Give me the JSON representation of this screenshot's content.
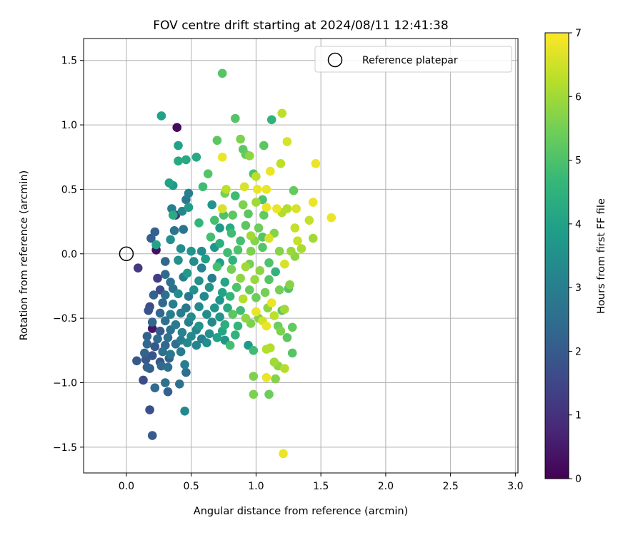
{
  "chart_data": {
    "type": "scatter",
    "title": "FOV centre drift starting at 2024/08/11 12:41:38",
    "xlabel": "Angular distance from reference (arcmin)",
    "ylabel": "Rotation from reference (arcmin)",
    "xlim": [
      -0.33,
      3.02
    ],
    "ylim": [
      -1.7,
      1.67
    ],
    "xticks": [
      0.0,
      0.5,
      1.0,
      1.5,
      2.0,
      2.5,
      3.0
    ],
    "xtick_labels": [
      "0.0",
      "0.5",
      "1.0",
      "1.5",
      "2.0",
      "2.5",
      "3.0"
    ],
    "yticks": [
      -1.5,
      -1.0,
      -0.5,
      0.0,
      0.5,
      1.0,
      1.5
    ],
    "ytick_labels": [
      "−1.5",
      "−1.0",
      "−0.5",
      "0.0",
      "0.5",
      "1.0",
      "1.5"
    ],
    "grid": true,
    "legend": {
      "placement": "top-right",
      "entries": [
        {
          "label": "Reference platepar",
          "marker": "open-circle"
        }
      ]
    },
    "colorbar": {
      "label": "Hours from first FF file",
      "range": [
        0,
        7
      ],
      "ticks": [
        0,
        1,
        2,
        3,
        4,
        5,
        6,
        7
      ],
      "tick_labels": [
        "0",
        "1",
        "2",
        "3",
        "4",
        "5",
        "6",
        "7"
      ],
      "colormap": "viridis"
    },
    "colormap_stops": [
      "#440154",
      "#482878",
      "#3e4989",
      "#31688e",
      "#26828e",
      "#1f9e89",
      "#35b779",
      "#6ece58",
      "#b5de2b",
      "#fde725"
    ],
    "reference_point": {
      "x": 0.0,
      "y": 0.0
    },
    "points": [
      [
        0.74,
        1.4,
        5.1
      ],
      [
        0.27,
        1.07,
        4.0
      ],
      [
        1.2,
        1.09,
        6.3
      ],
      [
        1.12,
        1.04,
        4.5
      ],
      [
        0.84,
        1.05,
        5.1
      ],
      [
        0.39,
        0.98,
        0.2
      ],
      [
        0.4,
        0.84,
        4.0
      ],
      [
        0.7,
        0.88,
        5.2
      ],
      [
        0.88,
        0.89,
        5.6
      ],
      [
        1.24,
        0.87,
        6.6
      ],
      [
        0.9,
        0.81,
        5.2
      ],
      [
        1.06,
        0.84,
        5.2
      ],
      [
        0.46,
        0.73,
        4.2
      ],
      [
        0.54,
        0.75,
        4.2
      ],
      [
        0.74,
        0.75,
        6.8
      ],
      [
        0.92,
        0.77,
        5.3
      ],
      [
        0.95,
        0.76,
        5.8
      ],
      [
        1.19,
        0.7,
        6.3
      ],
      [
        1.46,
        0.7,
        6.8
      ],
      [
        0.4,
        0.72,
        4.2
      ],
      [
        0.63,
        0.62,
        5.1
      ],
      [
        0.98,
        0.62,
        5.0
      ],
      [
        1.0,
        0.6,
        6.3
      ],
      [
        1.11,
        0.64,
        6.8
      ],
      [
        0.33,
        0.55,
        4.0
      ],
      [
        0.36,
        0.53,
        3.8
      ],
      [
        0.59,
        0.52,
        4.8
      ],
      [
        0.77,
        0.5,
        6.3
      ],
      [
        0.91,
        0.52,
        6.6
      ],
      [
        1.01,
        0.5,
        6.8
      ],
      [
        1.08,
        0.5,
        6.8
      ],
      [
        1.29,
        0.49,
        5.3
      ],
      [
        0.48,
        0.47,
        3.0
      ],
      [
        0.76,
        0.47,
        5.5
      ],
      [
        0.84,
        0.45,
        4.8
      ],
      [
        1.05,
        0.42,
        5.0
      ],
      [
        1.44,
        0.4,
        6.8
      ],
      [
        0.46,
        0.42,
        2.8
      ],
      [
        0.66,
        0.38,
        3.6
      ],
      [
        0.74,
        0.35,
        6.6
      ],
      [
        0.9,
        0.38,
        5.6
      ],
      [
        1.0,
        0.4,
        6.0
      ],
      [
        1.08,
        0.36,
        6.8
      ],
      [
        1.16,
        0.35,
        6.8
      ],
      [
        1.24,
        0.35,
        6.2
      ],
      [
        1.31,
        0.35,
        6.6
      ],
      [
        0.35,
        0.35,
        3.0
      ],
      [
        0.38,
        0.3,
        1.2
      ],
      [
        0.43,
        0.33,
        3.2
      ],
      [
        0.48,
        0.36,
        3.8
      ],
      [
        0.75,
        0.3,
        5.0
      ],
      [
        0.82,
        0.3,
        5.2
      ],
      [
        0.94,
        0.31,
        5.2
      ],
      [
        1.06,
        0.3,
        5.3
      ],
      [
        1.2,
        0.32,
        6.2
      ],
      [
        1.41,
        0.26,
        6.4
      ],
      [
        1.58,
        0.28,
        6.8
      ],
      [
        0.36,
        0.3,
        4.3
      ],
      [
        0.56,
        0.24,
        4.6
      ],
      [
        0.68,
        0.26,
        4.9
      ],
      [
        0.72,
        0.2,
        3.8
      ],
      [
        0.8,
        0.2,
        4.3
      ],
      [
        0.92,
        0.22,
        5.2
      ],
      [
        1.02,
        0.2,
        5.4
      ],
      [
        1.3,
        0.2,
        6.4
      ],
      [
        0.22,
        0.17,
        2.2
      ],
      [
        0.37,
        0.18,
        2.7
      ],
      [
        0.44,
        0.19,
        2.7
      ],
      [
        0.65,
        0.13,
        4.9
      ],
      [
        0.81,
        0.16,
        4.8
      ],
      [
        0.96,
        0.14,
        6.0
      ],
      [
        1.05,
        0.13,
        5.1
      ],
      [
        1.14,
        0.16,
        5.7
      ],
      [
        1.44,
        0.12,
        6.0
      ],
      [
        0.19,
        0.12,
        2.1
      ],
      [
        0.23,
        0.07,
        4.0
      ],
      [
        0.34,
        0.11,
        3.5
      ],
      [
        0.72,
        0.08,
        4.4
      ],
      [
        0.88,
        0.1,
        4.9
      ],
      [
        0.99,
        0.1,
        5.7
      ],
      [
        1.1,
        0.12,
        6.6
      ],
      [
        1.32,
        0.1,
        6.4
      ],
      [
        0.23,
        0.03,
        0.3
      ],
      [
        0.42,
        0.04,
        3.4
      ],
      [
        0.5,
        0.02,
        3.6
      ],
      [
        0.58,
        0.02,
        3.4
      ],
      [
        0.68,
        0.05,
        3.6
      ],
      [
        0.78,
        0.01,
        4.8
      ],
      [
        0.86,
        0.03,
        5.0
      ],
      [
        0.96,
        0.02,
        5.6
      ],
      [
        1.05,
        0.05,
        5.1
      ],
      [
        1.18,
        0.02,
        5.7
      ],
      [
        1.27,
        0.02,
        5.9
      ],
      [
        1.35,
        0.04,
        6.1
      ],
      [
        1.3,
        -0.02,
        5.8
      ],
      [
        0.3,
        -0.06,
        2.3
      ],
      [
        0.4,
        -0.05,
        3.5
      ],
      [
        0.52,
        -0.06,
        3.4
      ],
      [
        0.61,
        -0.04,
        3.9
      ],
      [
        0.72,
        -0.07,
        3.9
      ],
      [
        0.82,
        -0.05,
        4.5
      ],
      [
        0.95,
        -0.08,
        5.5
      ],
      [
        1.1,
        -0.07,
        5.0
      ],
      [
        1.22,
        -0.08,
        6.6
      ],
      [
        0.09,
        -0.11,
        1.2
      ],
      [
        0.3,
        -0.16,
        2.4
      ],
      [
        0.47,
        -0.15,
        3.8
      ],
      [
        0.58,
        -0.11,
        3.1
      ],
      [
        0.7,
        -0.1,
        4.9
      ],
      [
        0.81,
        -0.12,
        5.5
      ],
      [
        0.92,
        -0.1,
        6.0
      ],
      [
        1.03,
        -0.13,
        5.8
      ],
      [
        1.15,
        -0.14,
        4.5
      ],
      [
        0.24,
        -0.19,
        1.3
      ],
      [
        0.34,
        -0.22,
        2.7
      ],
      [
        0.44,
        -0.18,
        3.0
      ],
      [
        0.56,
        -0.21,
        3.5
      ],
      [
        0.66,
        -0.19,
        3.0
      ],
      [
        0.76,
        -0.22,
        4.1
      ],
      [
        0.88,
        -0.19,
        5.8
      ],
      [
        0.99,
        -0.2,
        5.9
      ],
      [
        1.1,
        -0.2,
        5.1
      ],
      [
        1.26,
        -0.24,
        5.7
      ],
      [
        0.26,
        -0.28,
        1.6
      ],
      [
        0.36,
        -0.27,
        2.6
      ],
      [
        0.52,
        -0.28,
        3.5
      ],
      [
        0.64,
        -0.26,
        3.6
      ],
      [
        0.74,
        -0.3,
        4.0
      ],
      [
        0.85,
        -0.26,
        5.0
      ],
      [
        0.95,
        -0.28,
        5.3
      ],
      [
        1.07,
        -0.3,
        5.5
      ],
      [
        1.18,
        -0.28,
        5.5
      ],
      [
        1.25,
        -0.27,
        5.1
      ],
      [
        0.21,
        -0.32,
        2.2
      ],
      [
        0.3,
        -0.32,
        2.6
      ],
      [
        0.4,
        -0.31,
        3.4
      ],
      [
        0.48,
        -0.33,
        2.8
      ],
      [
        0.6,
        -0.33,
        3.3
      ],
      [
        0.72,
        -0.36,
        3.6
      ],
      [
        0.8,
        -0.33,
        4.6
      ],
      [
        0.9,
        -0.35,
        6.2
      ],
      [
        1.0,
        -0.34,
        5.4
      ],
      [
        1.12,
        -0.38,
        6.8
      ],
      [
        0.18,
        -0.41,
        1.6
      ],
      [
        0.28,
        -0.38,
        2.4
      ],
      [
        0.36,
        -0.39,
        3.0
      ],
      [
        0.46,
        -0.42,
        2.8
      ],
      [
        0.56,
        -0.41,
        3.3
      ],
      [
        0.68,
        -0.42,
        3.6
      ],
      [
        0.78,
        -0.42,
        4.2
      ],
      [
        0.88,
        -0.44,
        4.8
      ],
      [
        1.0,
        -0.45,
        6.8
      ],
      [
        1.09,
        -0.42,
        5.8
      ],
      [
        1.2,
        -0.44,
        5.2
      ],
      [
        1.22,
        -0.43,
        6.0
      ],
      [
        0.17,
        -0.44,
        1.8
      ],
      [
        0.26,
        -0.46,
        2.4
      ],
      [
        0.34,
        -0.47,
        3.0
      ],
      [
        0.42,
        -0.46,
        2.9
      ],
      [
        0.5,
        -0.49,
        3.4
      ],
      [
        0.62,
        -0.47,
        3.4
      ],
      [
        0.72,
        -0.49,
        3.6
      ],
      [
        0.82,
        -0.47,
        5.2
      ],
      [
        0.92,
        -0.5,
        5.8
      ],
      [
        1.02,
        -0.5,
        5.7
      ],
      [
        1.14,
        -0.48,
        6.3
      ],
      [
        0.2,
        -0.53,
        2.3
      ],
      [
        0.3,
        -0.52,
        2.6
      ],
      [
        0.38,
        -0.55,
        2.9
      ],
      [
        0.48,
        -0.53,
        3.0
      ],
      [
        0.56,
        -0.56,
        3.6
      ],
      [
        0.66,
        -0.53,
        3.3
      ],
      [
        0.76,
        -0.55,
        4.4
      ],
      [
        0.86,
        -0.56,
        4.6
      ],
      [
        0.96,
        -0.54,
        5.6
      ],
      [
        1.05,
        -0.52,
        6.5
      ],
      [
        1.17,
        -0.56,
        5.4
      ],
      [
        0.2,
        -0.58,
        0.4
      ],
      [
        0.26,
        -0.6,
        2.0
      ],
      [
        0.34,
        -0.59,
        2.6
      ],
      [
        0.43,
        -0.61,
        3.1
      ],
      [
        0.54,
        -0.59,
        3.2
      ],
      [
        0.64,
        -0.62,
        3.5
      ],
      [
        0.74,
        -0.6,
        4.1
      ],
      [
        0.84,
        -0.63,
        4.5
      ],
      [
        1.08,
        -0.56,
        6.8
      ],
      [
        1.19,
        -0.6,
        5.6
      ],
      [
        1.28,
        -0.57,
        5.3
      ],
      [
        0.16,
        -0.64,
        2.2
      ],
      [
        0.24,
        -0.66,
        2.4
      ],
      [
        0.32,
        -0.65,
        2.6
      ],
      [
        0.42,
        -0.67,
        2.9
      ],
      [
        0.5,
        -0.64,
        3.3
      ],
      [
        0.58,
        -0.66,
        3.0
      ],
      [
        0.7,
        -0.65,
        4.0
      ],
      [
        0.76,
        -0.67,
        3.7
      ],
      [
        1.24,
        -0.65,
        5.2
      ],
      [
        0.16,
        -0.7,
        2.4
      ],
      [
        0.22,
        -0.72,
        1.9
      ],
      [
        0.3,
        -0.71,
        2.3
      ],
      [
        0.38,
        -0.7,
        2.5
      ],
      [
        0.47,
        -0.69,
        3.3
      ],
      [
        0.54,
        -0.71,
        3.1
      ],
      [
        0.62,
        -0.69,
        3.4
      ],
      [
        0.8,
        -0.71,
        4.9
      ],
      [
        0.94,
        -0.71,
        3.8
      ],
      [
        1.11,
        -0.73,
        6.2
      ],
      [
        0.14,
        -0.77,
        2.2
      ],
      [
        0.2,
        -0.79,
        1.8
      ],
      [
        0.28,
        -0.76,
        2.6
      ],
      [
        0.34,
        -0.78,
        2.8
      ],
      [
        0.42,
        -0.76,
        2.9
      ],
      [
        0.98,
        -0.75,
        4.8
      ],
      [
        1.08,
        -0.74,
        6.2
      ],
      [
        1.28,
        -0.77,
        5.1
      ],
      [
        0.08,
        -0.83,
        1.9
      ],
      [
        0.15,
        -0.82,
        1.9
      ],
      [
        0.26,
        -0.84,
        1.8
      ],
      [
        0.33,
        -0.81,
        2.2
      ],
      [
        0.45,
        -0.86,
        3.0
      ],
      [
        1.14,
        -0.84,
        6.0
      ],
      [
        0.16,
        -0.88,
        2.2
      ],
      [
        0.27,
        -0.87,
        2.4
      ],
      [
        0.32,
        -0.88,
        2.6
      ],
      [
        0.46,
        -0.92,
        2.5
      ],
      [
        1.17,
        -0.87,
        5.8
      ],
      [
        1.22,
        -0.89,
        6.2
      ],
      [
        0.18,
        -0.89,
        2.0
      ],
      [
        0.98,
        -0.95,
        5.6
      ],
      [
        1.08,
        -0.96,
        6.8
      ],
      [
        1.15,
        -0.97,
        5.7
      ],
      [
        0.13,
        -0.98,
        1.6
      ],
      [
        0.3,
        -1.0,
        2.6
      ],
      [
        0.41,
        -1.01,
        2.6
      ],
      [
        0.22,
        -1.04,
        2.4
      ],
      [
        0.32,
        -1.07,
        2.2
      ],
      [
        0.98,
        -1.09,
        5.6
      ],
      [
        1.1,
        -1.09,
        5.4
      ],
      [
        0.45,
        -1.22,
        3.3
      ],
      [
        0.18,
        -1.21,
        1.7
      ],
      [
        0.2,
        -1.41,
        2.0
      ],
      [
        1.21,
        -1.55,
        6.8
      ]
    ]
  }
}
